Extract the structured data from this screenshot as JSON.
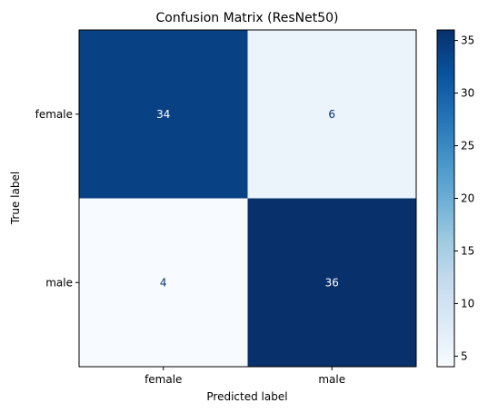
{
  "chart_data": {
    "type": "heatmap",
    "title": "Confusion Matrix (ResNet50)",
    "xlabel": "Predicted label",
    "ylabel": "True label",
    "x_categories": [
      "female",
      "male"
    ],
    "y_categories": [
      "female",
      "male"
    ],
    "matrix": [
      [
        34,
        6
      ],
      [
        4,
        36
      ]
    ],
    "colorscale": "Blues",
    "vmin": 4,
    "vmax": 36,
    "colorbar_ticks": [
      "5",
      "10",
      "15",
      "20",
      "25",
      "30",
      "35"
    ],
    "grid": false,
    "colors": {
      "low": "#f7fbff",
      "high": "#08306b",
      "text_dark": "#08306b",
      "text_light": "#ffffff"
    }
  }
}
